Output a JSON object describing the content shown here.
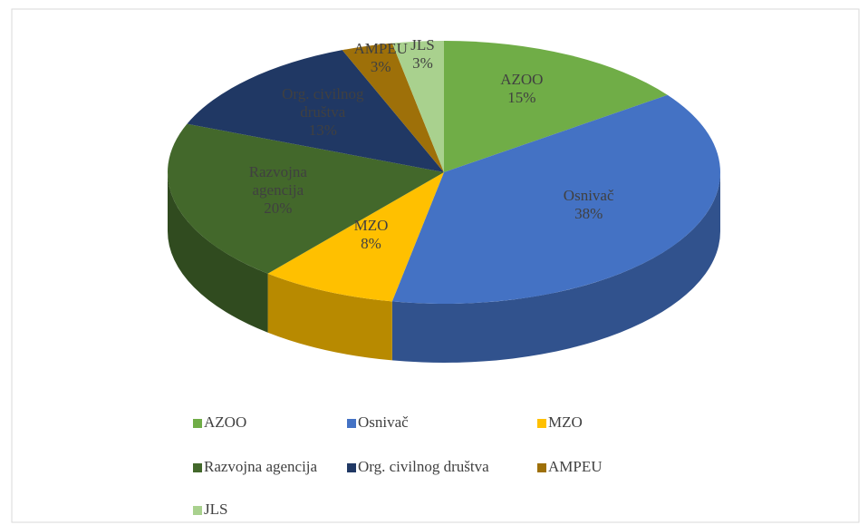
{
  "chart_data": {
    "type": "pie",
    "categories": [
      "AZOO",
      "Osnivač",
      "MZO",
      "Razvojna agencija",
      "Org. civilnog društva",
      "AMPEU",
      "JLS"
    ],
    "values": [
      15,
      38,
      8,
      20,
      13,
      3,
      3
    ],
    "value_labels": [
      "15%",
      "38%",
      "8%",
      "20%",
      "13%",
      "3%",
      "3%"
    ],
    "colors": [
      "#70ad47",
      "#4472c4",
      "#ffc000",
      "#43682b",
      "#203864",
      "#9e7009",
      "#a9d18e"
    ],
    "legend": "bottom"
  }
}
